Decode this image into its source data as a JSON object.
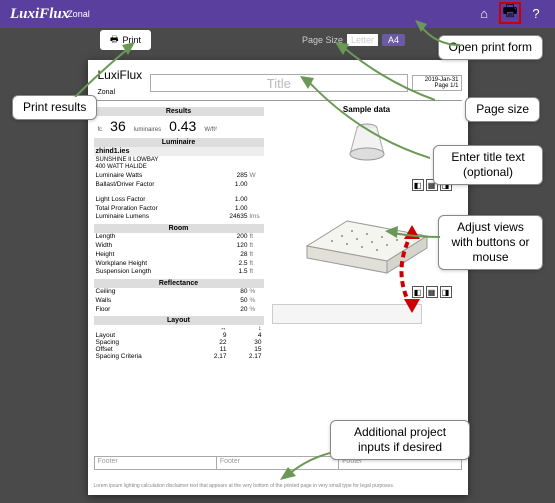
{
  "app": {
    "logo": "LuxiFlux",
    "logo_sub": "Zonal"
  },
  "toolbar": {
    "print": "Print",
    "page_size_label": "Page Size",
    "page_size_value": "Letter",
    "page_size_alt": "A4"
  },
  "page": {
    "title_placeholder": "Title",
    "date": "2019-Jan-31",
    "page_num": "Page 1/1",
    "logo": "LuxiFlux",
    "logo_sub": "Zonal"
  },
  "results": {
    "header": "Results",
    "fc_label": "fc",
    "fc_val": "",
    "luminaires": "36",
    "luminaires_unit": "luminaires",
    "wft": "0.43",
    "wft_unit": "W/ft²"
  },
  "luminaire": {
    "header": "Luminaire",
    "file": "zhind1.ies",
    "desc1": "SUNSHINE II LOWBAY",
    "desc2": "400 WATT HALIDE",
    "rows": [
      {
        "k": "Luminaire Watts",
        "v": "285",
        "u": "W"
      },
      {
        "k": "Ballast/Driver Factor",
        "v": "1.00",
        "u": ""
      },
      {
        "k": "Light Loss Factor",
        "v": "1.00",
        "u": ""
      },
      {
        "k": "Total Proration Factor",
        "v": "1.00",
        "u": ""
      },
      {
        "k": "Luminaire Lumens",
        "v": "24635",
        "u": "lms"
      }
    ]
  },
  "room": {
    "header": "Room",
    "rows": [
      {
        "k": "Length",
        "v": "200",
        "u": "ft"
      },
      {
        "k": "Width",
        "v": "120",
        "u": "ft"
      },
      {
        "k": "Height",
        "v": "28",
        "u": "ft"
      },
      {
        "k": "Workplane Height",
        "v": "2.5",
        "u": "ft"
      },
      {
        "k": "Suspension Length",
        "v": "1.5",
        "u": "ft"
      }
    ]
  },
  "reflectance": {
    "header": "Reflectance",
    "rows": [
      {
        "k": "Ceiling",
        "v": "80",
        "u": "%"
      },
      {
        "k": "Walls",
        "v": "50",
        "u": "%"
      },
      {
        "k": "Floor",
        "v": "20",
        "u": "%"
      }
    ]
  },
  "layout": {
    "header": "Layout",
    "cols": [
      "",
      "↔",
      "↕"
    ],
    "rows": [
      {
        "k": "Layout",
        "a": "9",
        "b": "4"
      },
      {
        "k": "Spacing",
        "a": "22",
        "b": "30",
        "u": "ft"
      },
      {
        "k": "Offset",
        "a": "11",
        "b": "15",
        "u": "ft"
      },
      {
        "k": "Spacing Criteria",
        "a": "2.17",
        "b": "2.17"
      }
    ]
  },
  "sample": {
    "label": "Sample data"
  },
  "footer": {
    "c1": "Footer",
    "c2": "Footer",
    "c3": "Footer"
  },
  "callouts": {
    "open_print": "Open print form",
    "print_results": "Print results",
    "page_size": "Page size",
    "enter_title": "Enter title text (optional)",
    "adjust_views": "Adjust views with buttons or mouse",
    "additional": "Additional project inputs if desired"
  },
  "colors": {
    "topbar": "#5b3f9e",
    "toolbar": "#4a4a4a",
    "callout_border": "#888",
    "highlight": "#c00"
  }
}
